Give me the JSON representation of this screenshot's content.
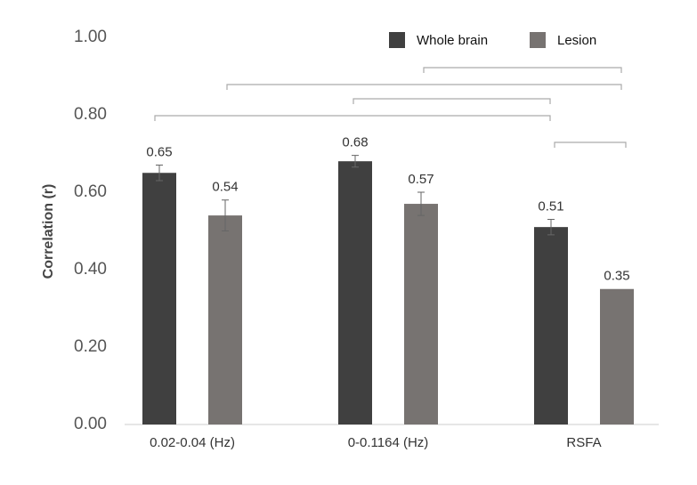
{
  "chart_data": {
    "type": "bar",
    "y_label": "Correlation (r)",
    "categories": [
      "0.02-0.04 (Hz)",
      "0-0.1164 (Hz)",
      "RSFA"
    ],
    "series": [
      {
        "name": "Whole brain",
        "color": "#404040",
        "values": [
          0.65,
          0.68,
          0.51
        ],
        "errors": [
          0.02,
          0.015,
          0.02
        ]
      },
      {
        "name": "Lesion",
        "color": "#777371",
        "values": [
          0.54,
          0.57,
          0.35
        ],
        "errors": [
          0.04,
          0.03,
          0
        ]
      }
    ],
    "ylim": [
      0,
      1
    ],
    "yticks": [
      {
        "value": 0,
        "label": "0.00"
      },
      {
        "value": 0.2,
        "label": "0.20"
      },
      {
        "value": 0.4,
        "label": "0.40"
      },
      {
        "value": 0.6,
        "label": "0.60"
      },
      {
        "value": 0.8,
        "label": "0.80"
      },
      {
        "value": 1,
        "label": "1.00"
      }
    ],
    "grid": false,
    "legend": "top-right"
  }
}
